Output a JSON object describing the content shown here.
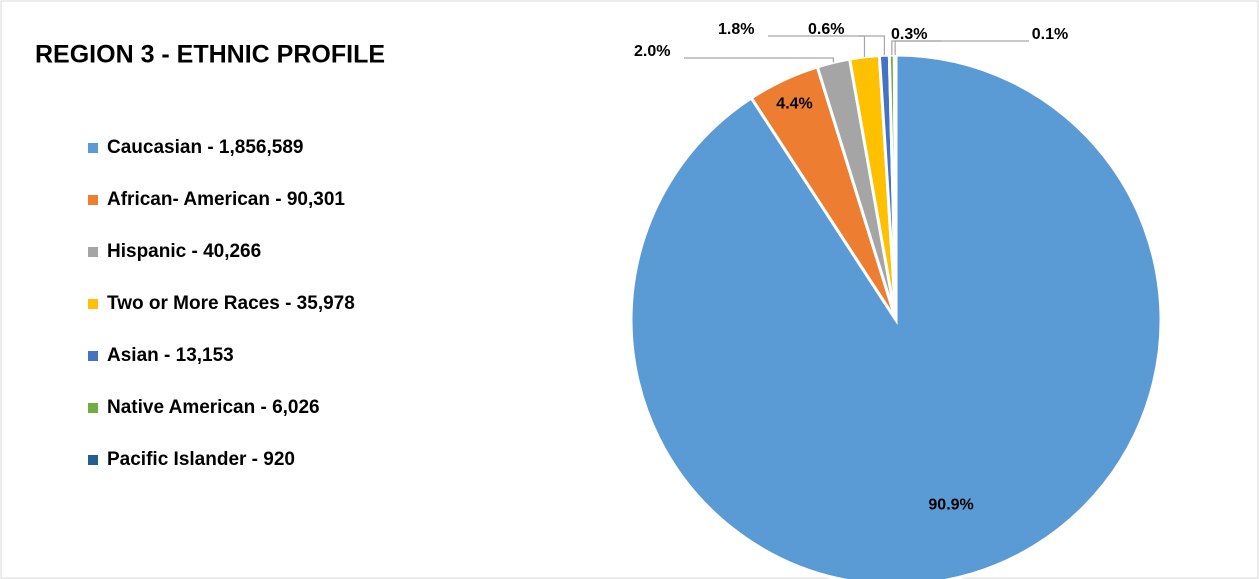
{
  "chart_data": {
    "type": "pie",
    "title": "REGION 3 - ETHNIC PROFILE",
    "categories": [
      "Caucasian - 1,856,589",
      "African- American - 90,301",
      "Hispanic - 40,266",
      "Two or More Races - 35,978",
      "Asian - 13,153",
      "Native American - 6,026",
      "Pacific Islander - 920"
    ],
    "values": [
      90.9,
      4.4,
      2.0,
      1.8,
      0.6,
      0.3,
      0.1
    ],
    "value_labels": [
      "90.9%",
      "4.4%",
      "2.0%",
      "1.8%",
      "0.6%",
      "0.3%",
      "0.1%"
    ],
    "colors": [
      "#5b9bd5",
      "#ed7d31",
      "#a5a5a5",
      "#ffc000",
      "#4472c4",
      "#70ad47",
      "#255e91"
    ],
    "legend": "left"
  }
}
